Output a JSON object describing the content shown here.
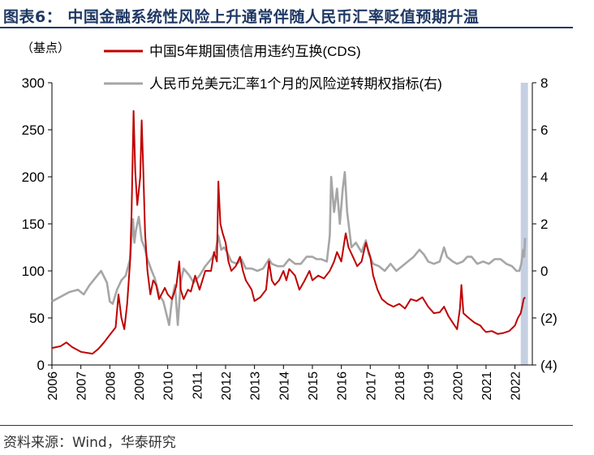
{
  "figure_title": "图表6：  中国金融系统性风险上升通常伴随人民币汇率贬值预期升温",
  "source": "资料来源：Wind，华泰研究",
  "chart_data": {
    "type": "line",
    "left_axis_unit": "（基点）",
    "x_ticks": [
      "2006",
      "2007",
      "2008",
      "2009",
      "2010",
      "2011",
      "2012",
      "2013",
      "2014",
      "2015",
      "2016",
      "2017",
      "2018",
      "2019",
      "2020",
      "2021",
      "2022"
    ],
    "xlim": [
      2006.0,
      2022.6
    ],
    "y_left": {
      "ylim": [
        0,
        300
      ],
      "ticks": [
        "0",
        "50",
        "100",
        "150",
        "200",
        "250",
        "300"
      ]
    },
    "y_right": {
      "ylim": [
        -4,
        8
      ],
      "ticks": [
        "(4)",
        "(2)",
        "0",
        "2",
        "4",
        "6",
        "8"
      ]
    },
    "grid": false,
    "legend_position": "top",
    "shaded_region": {
      "x_start": 2022.2,
      "x_end": 2022.45,
      "color": "#c5d0e3"
    },
    "series": [
      {
        "name": "中国5年期国债信用违约互换(CDS)",
        "axis": "left",
        "color": "#c00000",
        "points": [
          [
            2006.0,
            18
          ],
          [
            2006.3,
            20
          ],
          [
            2006.5,
            24
          ],
          [
            2006.7,
            19
          ],
          [
            2007.0,
            14
          ],
          [
            2007.4,
            12
          ],
          [
            2007.6,
            17
          ],
          [
            2007.8,
            24
          ],
          [
            2008.0,
            32
          ],
          [
            2008.2,
            40
          ],
          [
            2008.3,
            75
          ],
          [
            2008.4,
            50
          ],
          [
            2008.5,
            38
          ],
          [
            2008.6,
            65
          ],
          [
            2008.7,
            110
          ],
          [
            2008.75,
            160
          ],
          [
            2008.82,
            270
          ],
          [
            2008.88,
            205
          ],
          [
            2008.95,
            170
          ],
          [
            2009.05,
            200
          ],
          [
            2009.1,
            260
          ],
          [
            2009.15,
            215
          ],
          [
            2009.22,
            140
          ],
          [
            2009.3,
            100
          ],
          [
            2009.4,
            75
          ],
          [
            2009.5,
            90
          ],
          [
            2009.6,
            85
          ],
          [
            2009.7,
            70
          ],
          [
            2009.9,
            82
          ],
          [
            2010.0,
            75
          ],
          [
            2010.15,
            70
          ],
          [
            2010.3,
            84
          ],
          [
            2010.4,
            110
          ],
          [
            2010.45,
            80
          ],
          [
            2010.55,
            70
          ],
          [
            2010.7,
            80
          ],
          [
            2010.8,
            78
          ],
          [
            2010.95,
            95
          ],
          [
            2011.1,
            80
          ],
          [
            2011.3,
            100
          ],
          [
            2011.5,
            100
          ],
          [
            2011.6,
            120
          ],
          [
            2011.7,
            110
          ],
          [
            2011.75,
            195
          ],
          [
            2011.82,
            150
          ],
          [
            2011.9,
            140
          ],
          [
            2012.0,
            130
          ],
          [
            2012.1,
            110
          ],
          [
            2012.2,
            100
          ],
          [
            2012.35,
            105
          ],
          [
            2012.5,
            115
          ],
          [
            2012.6,
            100
          ],
          [
            2012.7,
            90
          ],
          [
            2012.8,
            85
          ],
          [
            2012.9,
            80
          ],
          [
            2013.0,
            68
          ],
          [
            2013.2,
            72
          ],
          [
            2013.4,
            80
          ],
          [
            2013.5,
            110
          ],
          [
            2013.6,
            90
          ],
          [
            2013.7,
            85
          ],
          [
            2013.85,
            90
          ],
          [
            2014.0,
            100
          ],
          [
            2014.1,
            90
          ],
          [
            2014.2,
            102
          ],
          [
            2014.4,
            95
          ],
          [
            2014.55,
            80
          ],
          [
            2014.7,
            88
          ],
          [
            2014.9,
            100
          ],
          [
            2015.0,
            90
          ],
          [
            2015.2,
            95
          ],
          [
            2015.4,
            92
          ],
          [
            2015.6,
            100
          ],
          [
            2015.75,
            110
          ],
          [
            2015.85,
            120
          ],
          [
            2016.0,
            110
          ],
          [
            2016.1,
            130
          ],
          [
            2016.15,
            140
          ],
          [
            2016.25,
            125
          ],
          [
            2016.4,
            115
          ],
          [
            2016.55,
            105
          ],
          [
            2016.7,
            110
          ],
          [
            2016.85,
            130
          ],
          [
            2017.0,
            115
          ],
          [
            2017.1,
            95
          ],
          [
            2017.25,
            80
          ],
          [
            2017.4,
            70
          ],
          [
            2017.6,
            65
          ],
          [
            2017.8,
            62
          ],
          [
            2018.0,
            65
          ],
          [
            2018.2,
            60
          ],
          [
            2018.4,
            70
          ],
          [
            2018.6,
            68
          ],
          [
            2018.8,
            72
          ],
          [
            2019.0,
            62
          ],
          [
            2019.2,
            55
          ],
          [
            2019.4,
            56
          ],
          [
            2019.55,
            62
          ],
          [
            2019.7,
            52
          ],
          [
            2019.85,
            45
          ],
          [
            2020.0,
            38
          ],
          [
            2020.1,
            60
          ],
          [
            2020.15,
            85
          ],
          [
            2020.22,
            55
          ],
          [
            2020.4,
            50
          ],
          [
            2020.6,
            45
          ],
          [
            2020.8,
            42
          ],
          [
            2020.9,
            38
          ],
          [
            2021.0,
            35
          ],
          [
            2021.2,
            36
          ],
          [
            2021.4,
            33
          ],
          [
            2021.6,
            34
          ],
          [
            2021.8,
            36
          ],
          [
            2022.0,
            42
          ],
          [
            2022.1,
            50
          ],
          [
            2022.2,
            55
          ],
          [
            2022.25,
            62
          ],
          [
            2022.3,
            70
          ],
          [
            2022.35,
            72
          ]
        ]
      },
      {
        "name": "人民币兑美元汇率1个月的风险逆转期权指标(右)",
        "axis": "right",
        "color": "#a6a6a6",
        "points": [
          [
            2006.0,
            -1.3
          ],
          [
            2006.3,
            -1.1
          ],
          [
            2006.6,
            -0.9
          ],
          [
            2006.9,
            -0.8
          ],
          [
            2007.1,
            -1.0
          ],
          [
            2007.3,
            -0.6
          ],
          [
            2007.5,
            -0.3
          ],
          [
            2007.7,
            0.0
          ],
          [
            2007.9,
            -0.5
          ],
          [
            2008.0,
            -1.3
          ],
          [
            2008.1,
            -1.4
          ],
          [
            2008.25,
            -0.8
          ],
          [
            2008.4,
            -0.4
          ],
          [
            2008.55,
            -0.2
          ],
          [
            2008.7,
            0.5
          ],
          [
            2008.8,
            2.2
          ],
          [
            2008.85,
            1.2
          ],
          [
            2008.9,
            1.7
          ],
          [
            2009.0,
            2.3
          ],
          [
            2009.1,
            1.3
          ],
          [
            2009.2,
            1.0
          ],
          [
            2009.3,
            0.5
          ],
          [
            2009.45,
            0.0
          ],
          [
            2009.55,
            -0.3
          ],
          [
            2009.7,
            -1.0
          ],
          [
            2009.85,
            -1.3
          ],
          [
            2010.05,
            -2.3
          ],
          [
            2010.15,
            -1.2
          ],
          [
            2010.25,
            -0.6
          ],
          [
            2010.35,
            -2.3
          ],
          [
            2010.45,
            -0.5
          ],
          [
            2010.55,
            0.1
          ],
          [
            2010.75,
            -0.2
          ],
          [
            2010.9,
            -0.5
          ],
          [
            2011.1,
            -0.2
          ],
          [
            2011.3,
            0.2
          ],
          [
            2011.5,
            0.5
          ],
          [
            2011.65,
            0.8
          ],
          [
            2011.75,
            1.5
          ],
          [
            2011.85,
            0.9
          ],
          [
            2011.95,
            1.0
          ],
          [
            2012.05,
            0.8
          ],
          [
            2012.2,
            0.4
          ],
          [
            2012.4,
            0.3
          ],
          [
            2012.55,
            0.5
          ],
          [
            2012.7,
            0.1
          ],
          [
            2012.9,
            0.1
          ],
          [
            2013.1,
            0.0
          ],
          [
            2013.3,
            0.1
          ],
          [
            2013.5,
            0.5
          ],
          [
            2013.6,
            0.3
          ],
          [
            2013.8,
            0.2
          ],
          [
            2014.0,
            0.2
          ],
          [
            2014.2,
            0.5
          ],
          [
            2014.4,
            0.3
          ],
          [
            2014.6,
            0.3
          ],
          [
            2014.8,
            0.6
          ],
          [
            2015.0,
            0.6
          ],
          [
            2015.15,
            0.5
          ],
          [
            2015.3,
            0.5
          ],
          [
            2015.5,
            0.4
          ],
          [
            2015.6,
            1.5
          ],
          [
            2015.65,
            4.0
          ],
          [
            2015.75,
            2.5
          ],
          [
            2015.85,
            3.5
          ],
          [
            2015.95,
            2.0
          ],
          [
            2016.05,
            3.5
          ],
          [
            2016.12,
            4.2
          ],
          [
            2016.2,
            2.5
          ],
          [
            2016.35,
            1.0
          ],
          [
            2016.5,
            1.2
          ],
          [
            2016.7,
            0.8
          ],
          [
            2016.85,
            1.3
          ],
          [
            2016.95,
            0.7
          ],
          [
            2017.1,
            0.3
          ],
          [
            2017.3,
            0.2
          ],
          [
            2017.5,
            0.0
          ],
          [
            2017.7,
            0.3
          ],
          [
            2017.9,
            0.0
          ],
          [
            2018.1,
            0.2
          ],
          [
            2018.3,
            0.4
          ],
          [
            2018.5,
            0.6
          ],
          [
            2018.7,
            0.9
          ],
          [
            2018.85,
            0.7
          ],
          [
            2019.0,
            0.4
          ],
          [
            2019.2,
            0.3
          ],
          [
            2019.4,
            0.4
          ],
          [
            2019.55,
            1.0
          ],
          [
            2019.65,
            0.6
          ],
          [
            2019.85,
            0.4
          ],
          [
            2020.0,
            0.3
          ],
          [
            2020.2,
            0.4
          ],
          [
            2020.35,
            0.6
          ],
          [
            2020.5,
            0.6
          ],
          [
            2020.7,
            0.3
          ],
          [
            2020.9,
            0.4
          ],
          [
            2021.1,
            0.3
          ],
          [
            2021.3,
            0.5
          ],
          [
            2021.5,
            0.5
          ],
          [
            2021.7,
            0.3
          ],
          [
            2021.9,
            0.2
          ],
          [
            2022.05,
            0.0
          ],
          [
            2022.15,
            0.0
          ],
          [
            2022.22,
            0.3
          ],
          [
            2022.28,
            0.9
          ],
          [
            2022.32,
            0.6
          ],
          [
            2022.35,
            1.4
          ]
        ]
      }
    ]
  }
}
